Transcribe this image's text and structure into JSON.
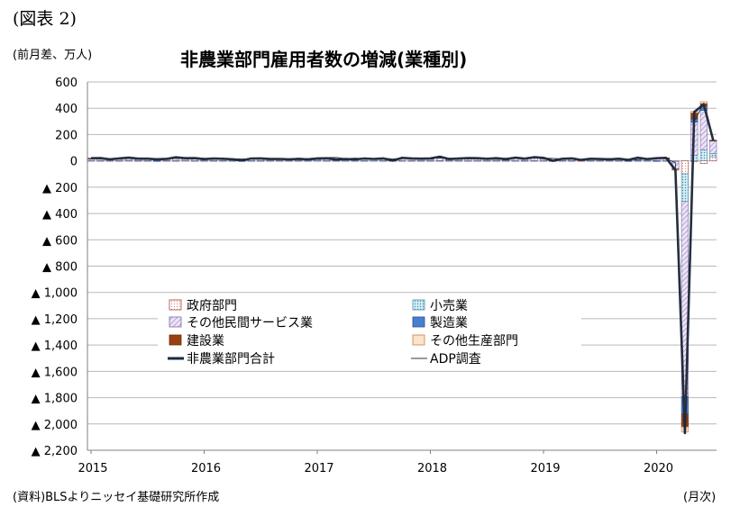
{
  "figure_label": "(図表 2)",
  "unit_label": "(前月差、万人)",
  "source_note": "(資料)BLSよりニッセイ基礎研究所作成",
  "period_note": "(月次)",
  "chart_data": {
    "type": "bar",
    "title": "非農業部門雇用者数の増減(業種別)",
    "xlabel": "",
    "ylabel": "",
    "ylim": [
      -2200,
      600
    ],
    "y_ticks": [
      {
        "value": 600,
        "label": "600"
      },
      {
        "value": 400,
        "label": "400"
      },
      {
        "value": 200,
        "label": "200"
      },
      {
        "value": 0,
        "label": "0"
      },
      {
        "value": -200,
        "label": "▲ 200"
      },
      {
        "value": -400,
        "label": "▲ 400"
      },
      {
        "value": -600,
        "label": "▲ 600"
      },
      {
        "value": -800,
        "label": "▲ 800"
      },
      {
        "value": -1000,
        "label": "▲ 1,000"
      },
      {
        "value": -1200,
        "label": "▲ 1,200"
      },
      {
        "value": -1400,
        "label": "▲ 1,400"
      },
      {
        "value": -1600,
        "label": "▲ 1,600"
      },
      {
        "value": -1800,
        "label": "▲ 1,800"
      },
      {
        "value": -2000,
        "label": "▲ 2,000"
      },
      {
        "value": -2200,
        "label": "▲ 2,200"
      }
    ],
    "x_ticks": [
      "2015",
      "2016",
      "2017",
      "2018",
      "2019",
      "2020"
    ],
    "start": "2015-01",
    "months": [
      "2015-01",
      "2015-02",
      "2015-03",
      "2015-04",
      "2015-05",
      "2015-06",
      "2015-07",
      "2015-08",
      "2015-09",
      "2015-10",
      "2015-11",
      "2015-12",
      "2016-01",
      "2016-02",
      "2016-03",
      "2016-04",
      "2016-05",
      "2016-06",
      "2016-07",
      "2016-08",
      "2016-09",
      "2016-10",
      "2016-11",
      "2016-12",
      "2017-01",
      "2017-02",
      "2017-03",
      "2017-04",
      "2017-05",
      "2017-06",
      "2017-07",
      "2017-08",
      "2017-09",
      "2017-10",
      "2017-11",
      "2017-12",
      "2018-01",
      "2018-02",
      "2018-03",
      "2018-04",
      "2018-05",
      "2018-06",
      "2018-07",
      "2018-08",
      "2018-09",
      "2018-10",
      "2018-11",
      "2018-12",
      "2019-01",
      "2019-02",
      "2019-03",
      "2019-04",
      "2019-05",
      "2019-06",
      "2019-07",
      "2019-08",
      "2019-09",
      "2019-10",
      "2019-11",
      "2019-12",
      "2020-01",
      "2020-02",
      "2020-03",
      "2020-04",
      "2020-05",
      "2020-06",
      "2020-07"
    ],
    "legend": [
      {
        "name": "政府部門",
        "kind": "bar",
        "color": "#ffffff",
        "stroke": "#b04040"
      },
      {
        "name": "小売業",
        "kind": "bar",
        "color": "#bfe3ef",
        "stroke": "#4a8fa8"
      },
      {
        "name": "その他民間サービス業",
        "kind": "bar",
        "color": "#ddd0ee",
        "stroke": "#7a66a8"
      },
      {
        "name": "製造業",
        "kind": "bar",
        "color": "#4a7fd0",
        "stroke": "#2a4f90"
      },
      {
        "name": "建設業",
        "kind": "bar",
        "color": "#9a4010",
        "stroke": "#6a2a08"
      },
      {
        "name": "その他生産部門",
        "kind": "bar",
        "color": "#fde3c8",
        "stroke": "#c08050"
      },
      {
        "name": "非農業部門合計",
        "kind": "line",
        "color": "#1c2a44"
      },
      {
        "name": "ADP調査",
        "kind": "line",
        "color": "#333333"
      }
    ],
    "series": [
      {
        "name": "政府部門",
        "values": [
          2,
          1,
          1,
          1,
          2,
          1,
          1,
          2,
          1,
          1,
          2,
          1,
          1,
          1,
          1,
          1,
          0,
          1,
          1,
          1,
          1,
          1,
          1,
          1,
          0,
          1,
          1,
          1,
          1,
          1,
          0,
          1,
          0,
          1,
          1,
          1,
          1,
          1,
          1,
          1,
          1,
          1,
          1,
          1,
          1,
          1,
          1,
          1,
          1,
          0,
          1,
          1,
          1,
          1,
          1,
          1,
          1,
          1,
          1,
          1,
          1,
          1,
          -1,
          -98,
          -5,
          -21,
          31
        ]
      },
      {
        "name": "小売業",
        "values": [
          1,
          2,
          1,
          1,
          2,
          1,
          1,
          1,
          2,
          2,
          2,
          1,
          1,
          1,
          1,
          1,
          0,
          1,
          1,
          1,
          1,
          1,
          1,
          1,
          1,
          1,
          1,
          1,
          1,
          1,
          1,
          1,
          1,
          1,
          1,
          1,
          1,
          1,
          1,
          1,
          1,
          1,
          1,
          1,
          1,
          1,
          1,
          1,
          1,
          1,
          1,
          1,
          0,
          1,
          1,
          1,
          1,
          1,
          1,
          1,
          1,
          1,
          -3,
          -211,
          44,
          84,
          26
        ]
      },
      {
        "name": "その他民間サービス業",
        "values": [
          14,
          15,
          10,
          14,
          17,
          13,
          13,
          9,
          11,
          21,
          14,
          16,
          9,
          13,
          13,
          9,
          4,
          15,
          15,
          10,
          12,
          9,
          11,
          9,
          12,
          13,
          6,
          11,
          8,
          14,
          12,
          11,
          0,
          17,
          12,
          9,
          12,
          20,
          8,
          11,
          14,
          12,
          9,
          12,
          7,
          16,
          11,
          20,
          14,
          2,
          12,
          13,
          6,
          11,
          11,
          9,
          12,
          9,
          16,
          11,
          15,
          16,
          -58,
          -1483,
          250,
          300,
          95
        ]
      },
      {
        "name": "製造業",
        "values": [
          1,
          1,
          0,
          1,
          1,
          1,
          1,
          -1,
          0,
          0,
          0,
          0,
          0,
          1,
          0,
          0,
          -1,
          0,
          1,
          1,
          0,
          0,
          0,
          0,
          1,
          1,
          1,
          1,
          0,
          0,
          1,
          3,
          0,
          3,
          3,
          3,
          2,
          3,
          3,
          2,
          2,
          3,
          3,
          1,
          2,
          3,
          3,
          3,
          2,
          0,
          0,
          1,
          0,
          1,
          1,
          0,
          0,
          -4,
          5,
          0,
          -1,
          1,
          -2,
          -133,
          25,
          36,
          3
        ]
      },
      {
        "name": "建設業",
        "values": [
          2,
          2,
          0,
          2,
          2,
          1,
          1,
          1,
          1,
          3,
          2,
          3,
          2,
          2,
          1,
          0,
          0,
          1,
          1,
          1,
          1,
          1,
          2,
          1,
          3,
          4,
          1,
          0,
          1,
          2,
          1,
          3,
          1,
          1,
          2,
          3,
          3,
          5,
          1,
          2,
          3,
          2,
          2,
          3,
          2,
          3,
          1,
          3,
          5,
          -3,
          2,
          3,
          0,
          2,
          0,
          1,
          2,
          1,
          1,
          0,
          3,
          4,
          -3,
          -97,
          46,
          16,
          2
        ]
      },
      {
        "name": "その他生産部門",
        "values": [
          0,
          0,
          0,
          0,
          0,
          0,
          0,
          0,
          0,
          0,
          0,
          0,
          0,
          0,
          0,
          0,
          0,
          0,
          0,
          0,
          0,
          0,
          0,
          0,
          0,
          0,
          0,
          0,
          0,
          0,
          0,
          0,
          0,
          0,
          0,
          0,
          0,
          0,
          0,
          0,
          0,
          0,
          0,
          0,
          0,
          0,
          0,
          0,
          0,
          0,
          0,
          0,
          0,
          0,
          0,
          0,
          0,
          0,
          0,
          0,
          0,
          0,
          -2,
          -40,
          12,
          14,
          0
        ]
      },
      {
        "name": "非農業部門合計",
        "values": [
          20,
          21,
          12,
          19,
          24,
          17,
          17,
          12,
          15,
          27,
          20,
          21,
          13,
          18,
          16,
          12,
          3,
          18,
          19,
          14,
          15,
          12,
          15,
          12,
          17,
          20,
          10,
          14,
          11,
          18,
          15,
          19,
          2,
          23,
          19,
          17,
          19,
          32,
          14,
          18,
          21,
          20,
          16,
          20,
          13,
          24,
          17,
          28,
          23,
          0,
          16,
          19,
          7,
          16,
          14,
          12,
          16,
          8,
          24,
          13,
          20,
          23,
          -70,
          -2069,
          372,
          429,
          157
        ]
      },
      {
        "name": "ADP調査",
        "values": [
          22,
          18,
          17,
          19,
          20,
          23,
          18,
          18,
          20,
          19,
          21,
          24,
          20,
          18,
          19,
          17,
          14,
          17,
          18,
          17,
          15,
          15,
          21,
          17,
          24,
          25,
          26,
          17,
          21,
          17,
          17,
          22,
          14,
          21,
          20,
          20,
          21,
          22,
          20,
          17,
          19,
          18,
          21,
          16,
          20,
          19,
          18,
          21,
          22,
          18,
          15,
          20,
          3,
          11,
          16,
          19,
          13,
          12,
          7,
          19,
          20,
          18,
          -15,
          -1924,
          300,
          440,
          170
        ]
      }
    ]
  }
}
